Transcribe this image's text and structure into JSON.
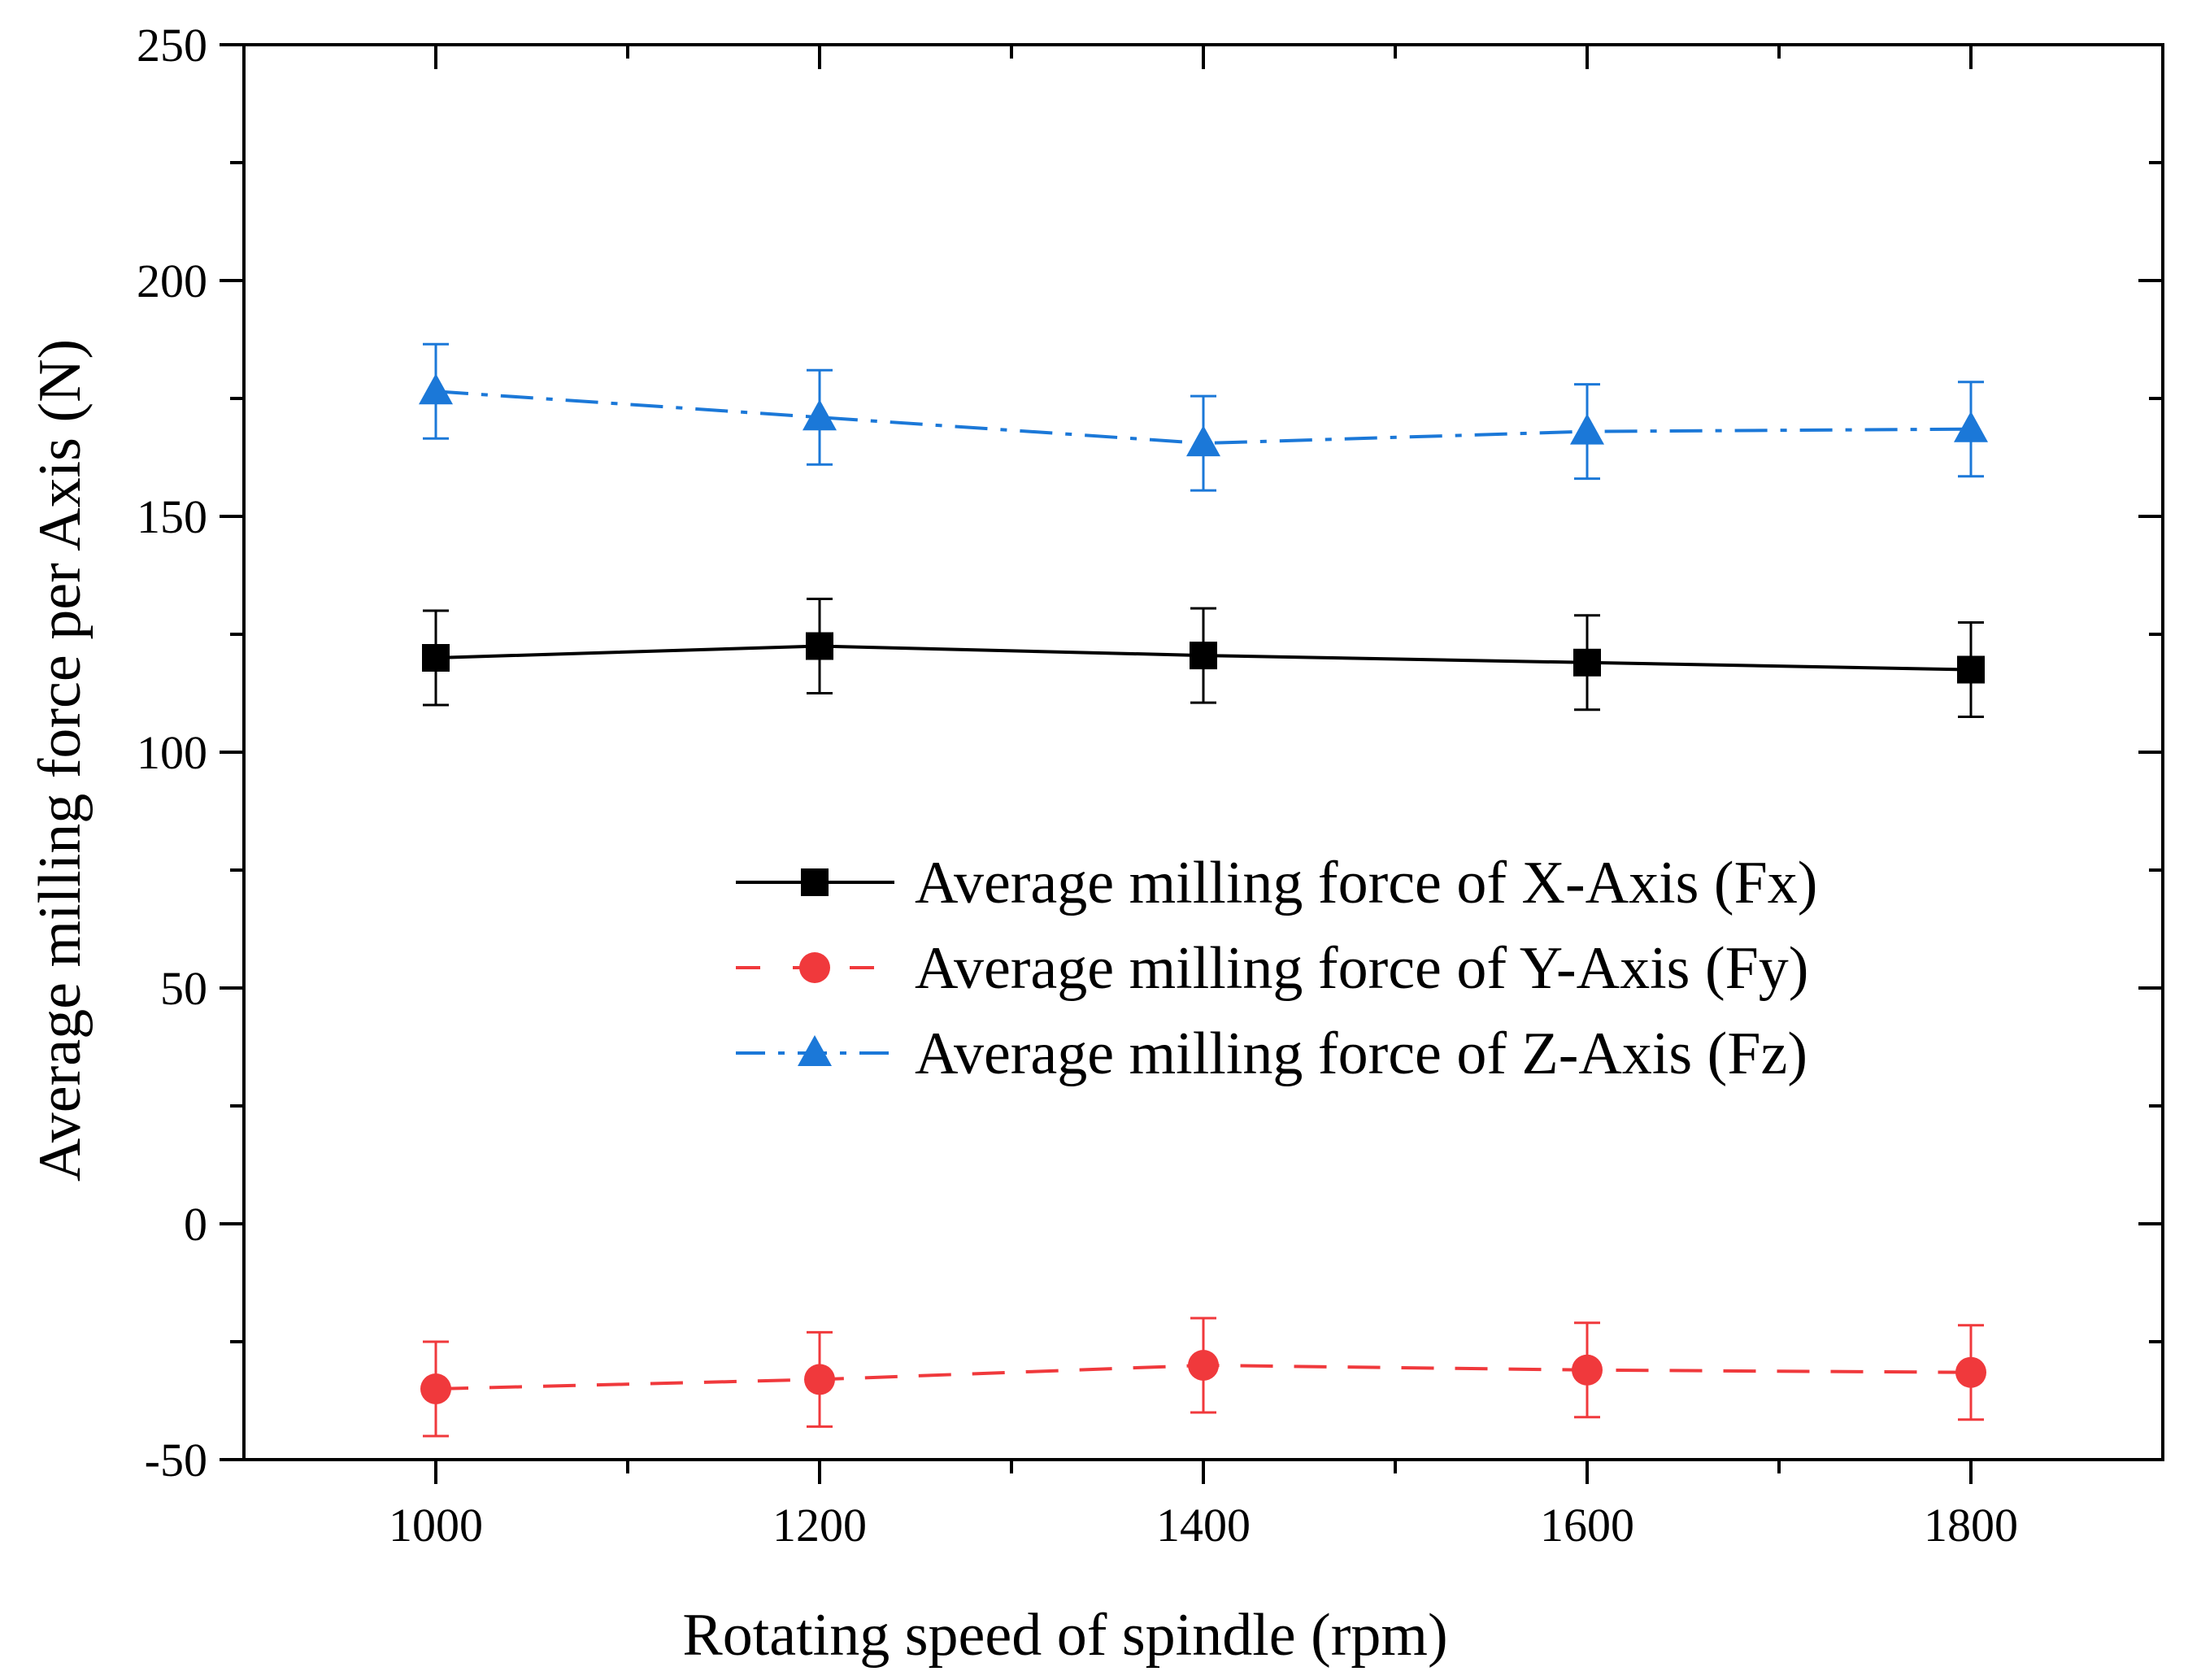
{
  "chart_data": {
    "type": "line",
    "title": "",
    "xlabel": "Rotating speed of spindle (rpm)",
    "ylabel": "Average milling force per Axis (N)",
    "xlim": [
      900,
      1900
    ],
    "ylim": [
      -50,
      250
    ],
    "x_ticks": [
      1000,
      1200,
      1400,
      1600,
      1800
    ],
    "x_tick_labels": [
      "1000",
      "1200",
      "1400",
      "1600",
      "1800"
    ],
    "y_ticks": [
      -50,
      0,
      50,
      100,
      150,
      200,
      250
    ],
    "y_tick_labels": [
      "-50",
      "0",
      "50",
      "100",
      "150",
      "200",
      "250"
    ],
    "x_minor_ticks": [
      1100,
      1300,
      1500,
      1700
    ],
    "y_minor_ticks": [
      -25,
      25,
      75,
      125,
      175,
      225
    ],
    "x": [
      1000,
      1200,
      1400,
      1600,
      1800
    ],
    "grid": false,
    "legend_position": "center-right",
    "series": [
      {
        "name": "Average milling force of X-Axis (Fx)",
        "values": [
          120,
          122.5,
          120.5,
          119,
          117.5
        ],
        "errors": [
          10,
          10,
          10,
          10,
          10
        ],
        "color": "#000000",
        "marker": "square",
        "dash": "solid"
      },
      {
        "name": "Average milling force of Y-Axis (Fy)",
        "values": [
          -35,
          -33,
          -30,
          -31,
          -31.5
        ],
        "errors": [
          10,
          10,
          10,
          10,
          10
        ],
        "color": "#f0393c",
        "marker": "circle",
        "dash": "dash"
      },
      {
        "name": "Average milling force of Z-Axis (Fz)",
        "values": [
          176.5,
          171,
          165.5,
          168,
          168.5
        ],
        "errors": [
          10,
          10,
          10,
          10,
          10
        ],
        "color": "#1b78d8",
        "marker": "triangle",
        "dash": "dashdot"
      }
    ]
  }
}
